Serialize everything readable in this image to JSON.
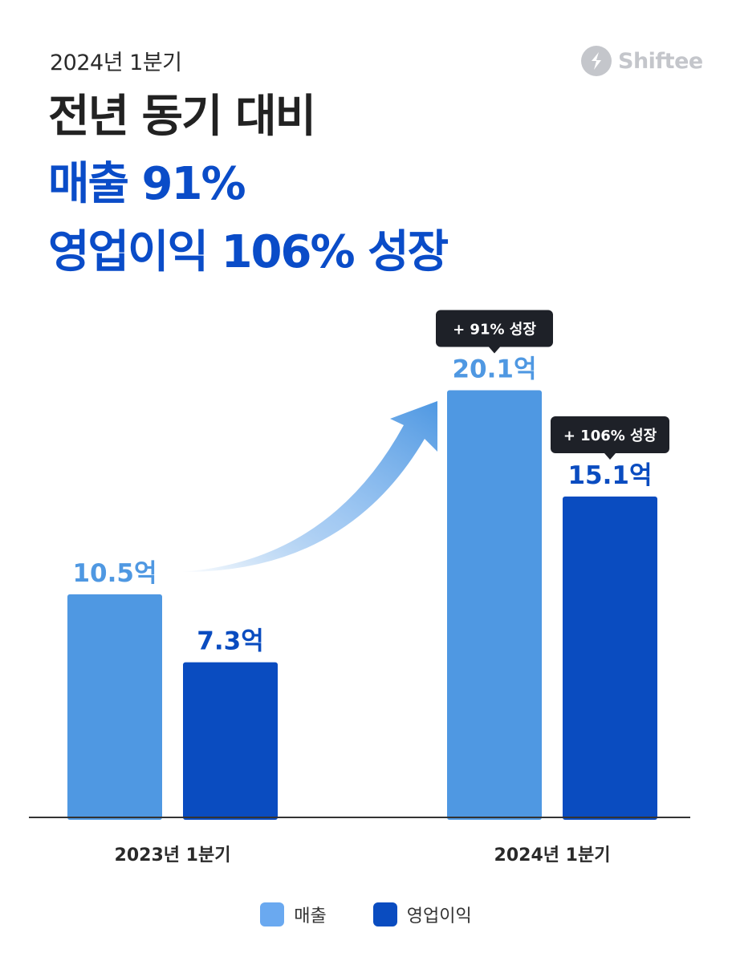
{
  "header": {
    "period": "2024년 1분기",
    "brand": "Shiftee",
    "headline_line1": "전년 동기 대비",
    "headline_line2": "매출 91%",
    "headline_line3": "영업이익 106% 성장"
  },
  "chart_data": {
    "type": "bar",
    "categories": [
      "2023년 1분기",
      "2024년 1분기"
    ],
    "series": [
      {
        "name": "매출",
        "values": [
          10.5,
          20.1
        ],
        "labels": [
          "10.5억",
          "20.1억"
        ],
        "color": "#4f98e2"
      },
      {
        "name": "영업이익",
        "values": [
          7.3,
          15.1
        ],
        "labels": [
          "7.3억",
          "15.1억"
        ],
        "color": "#0a4cc0"
      }
    ],
    "ylim": [
      0,
      24.5
    ],
    "grid": false,
    "legend": "bottom-center",
    "annotations": [
      {
        "series": 0,
        "category": 1,
        "text": "+ 91% 성장"
      },
      {
        "series": 1,
        "category": 1,
        "text": "+ 106% 성장"
      }
    ],
    "tooltip_color": "#1e2128",
    "axis_color": "#333333",
    "legend_colors": [
      "#6aa9f0",
      "#0a4cc0"
    ]
  }
}
